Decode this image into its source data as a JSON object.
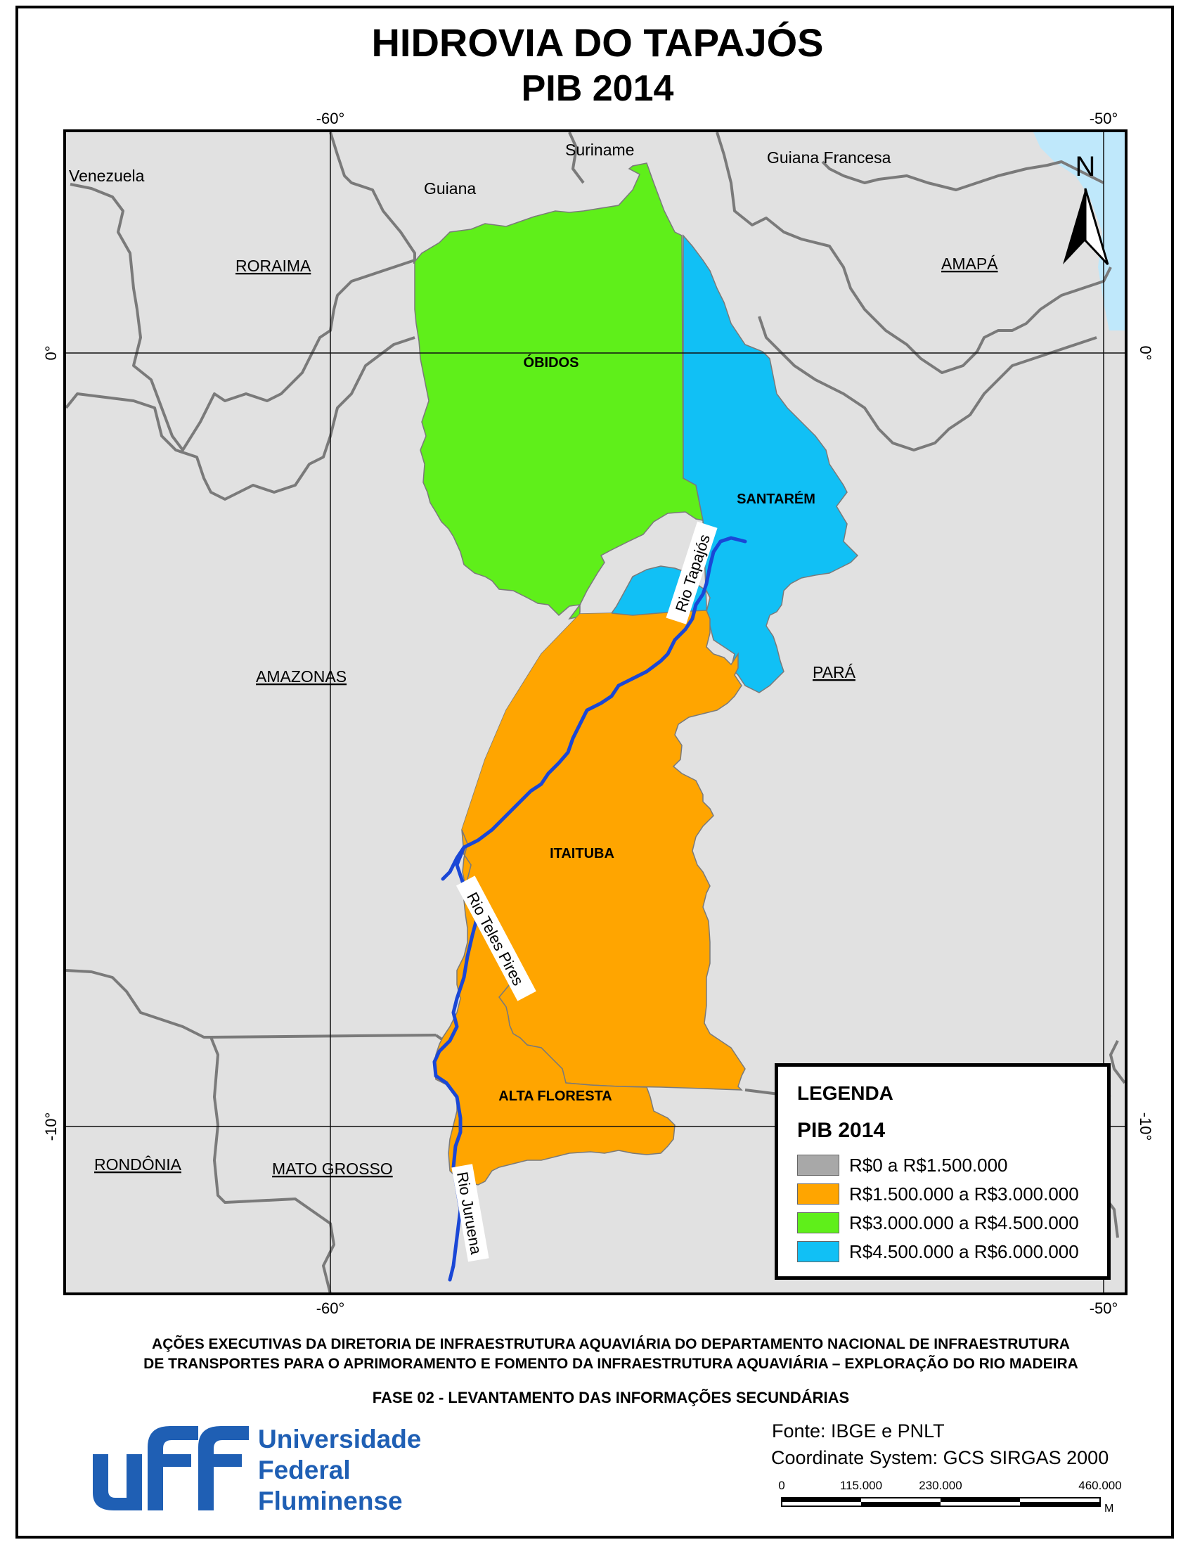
{
  "title": {
    "line1": "HIDROVIA DO TAPAJÓS",
    "line2": "PIB 2014"
  },
  "graticule": {
    "top": [
      "-60°",
      "-50°"
    ],
    "bottom": [
      "-60°",
      "-50°"
    ],
    "left": [
      "0°",
      "-10°"
    ],
    "right": [
      "0°",
      "-10°"
    ]
  },
  "countries": [
    "Venezuela",
    "Guiana",
    "Suriname",
    "Guiana Francesa"
  ],
  "states": [
    "RORAIMA",
    "AMAPÁ",
    "AMAZONAS",
    "PARÁ",
    "RONDÔNIA",
    "MATO GROSSO"
  ],
  "regions": [
    {
      "name": "ÓBIDOS",
      "pib_class": 2
    },
    {
      "name": "SANTARÉM",
      "pib_class": 3
    },
    {
      "name": "ITAITUBA",
      "pib_class": 1
    },
    {
      "name": "ALTA FLORESTA",
      "pib_class": 1
    }
  ],
  "rivers": [
    "Rio Tapajós",
    "Rio Teles Pires",
    "Rio Juruena"
  ],
  "north_label": "N",
  "legend": {
    "heading": "LEGENDA",
    "subheading": "PIB 2014",
    "items": [
      {
        "label": "R$0 a R$1.500.000",
        "color": "#a8a8a8"
      },
      {
        "label": "R$1.500.000 a R$3.000.000",
        "color": "#ffa500"
      },
      {
        "label": "R$3.000.000 a R$4.500.000",
        "color": "#5fef1a"
      },
      {
        "label": "R$4.500.000 a R$6.000.000",
        "color": "#11c0f5"
      }
    ]
  },
  "colors": {
    "background_land": "#e1e1e1",
    "ocean": "#bfe8fb",
    "river": "#1a47d6",
    "boundary": "#7a7a7a"
  },
  "footer": {
    "line1": "AÇÕES EXECUTIVAS DA DIRETORIA DE INFRAESTRUTURA AQUAVIÁRIA DO DEPARTAMENTO NACIONAL DE INFRAESTRUTURA",
    "line2": "DE TRANSPORTES PARA O APRIMORAMENTO E FOMENTO DA INFRAESTRUTURA AQUAVIÁRIA – EXPLORAÇÃO DO RIO MADEIRA",
    "line3": "FASE 02 - LEVANTAMENTO DAS INFORMAÇÕES SECUNDÁRIAS"
  },
  "institution": {
    "line1": "Universidade",
    "line2": "Federal",
    "line3": "Fluminense",
    "logo_color": "#1f5fb4"
  },
  "source": "Fonte: IBGE e PNLT",
  "coordinate_system": "Coordinate System: GCS SIRGAS 2000",
  "scale_bar": {
    "labels": [
      "0",
      "115.000",
      "230.000",
      "460.000"
    ],
    "unit": "M"
  }
}
